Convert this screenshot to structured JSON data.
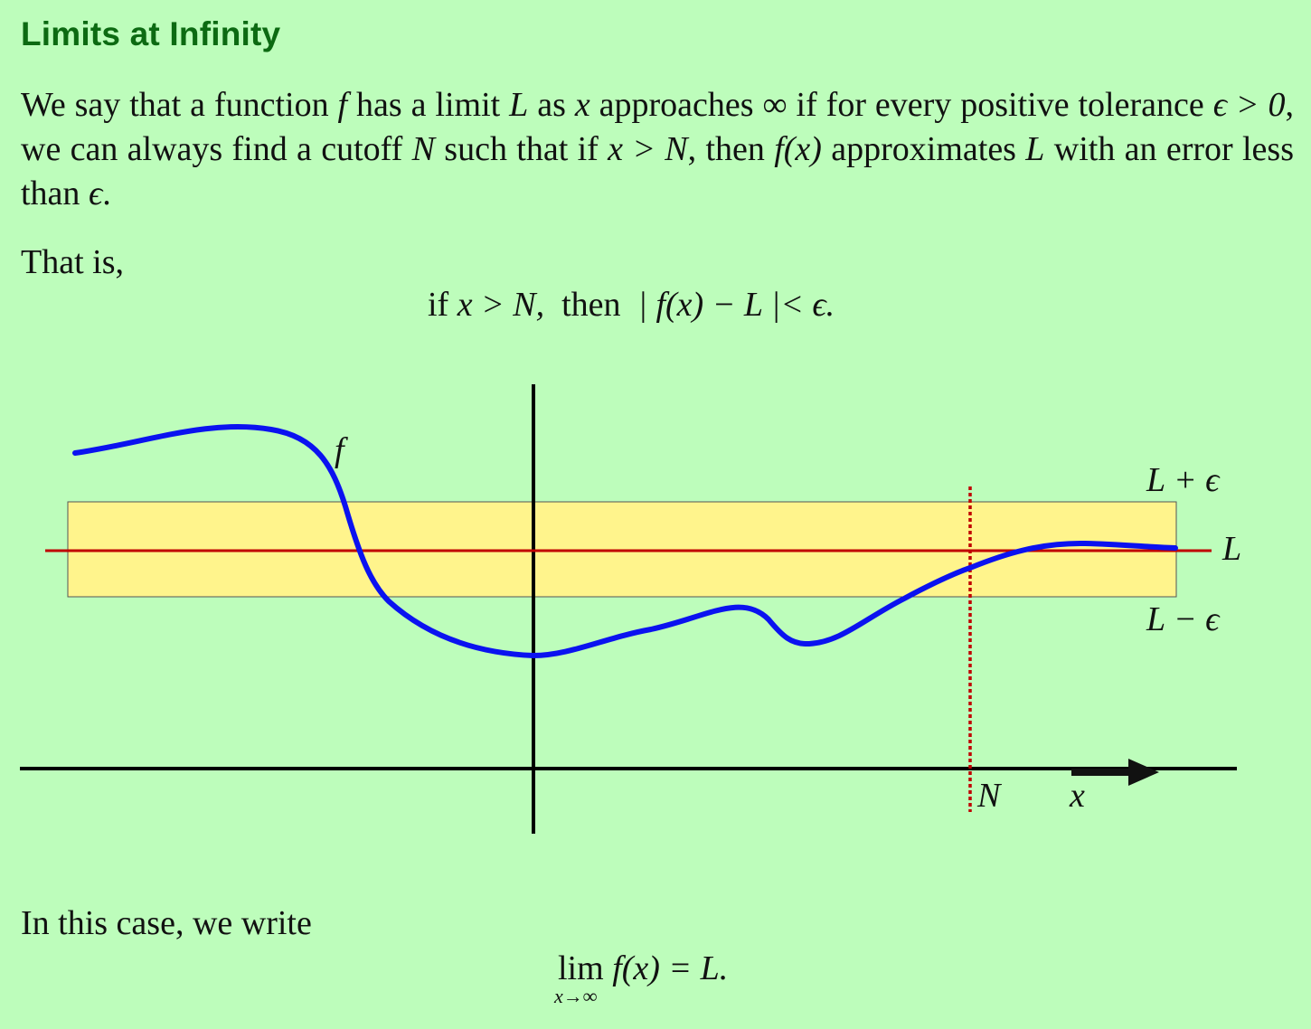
{
  "header": {
    "title": "Limits at Infinity"
  },
  "intro": {
    "t1": "We say that a function ",
    "f": "f",
    "t2": " has a limit ",
    "L": "L",
    "t3": " as ",
    "x": "x",
    "t4": " approaches ∞ if for every positive tolerance ",
    "eps_gt": "ϵ > 0",
    "t5": ", we can always find a cutoff ",
    "N": "N",
    "t6": " such that if ",
    "x_gt_N": "x > N",
    "t7": ", then ",
    "fx": "f(x)",
    "t8": " approximates ",
    "L2": "L",
    "t9": " with an error less than ",
    "eps": "ϵ",
    "t10": "."
  },
  "that_is": "That is,",
  "condition": {
    "if": "if ",
    "x_gt_N": "x > N,",
    "then": "  then  ",
    "expr": "| f(x) − L |< ϵ."
  },
  "plot": {
    "labels": {
      "f": "f",
      "upper": "L + ϵ",
      "mid": "L",
      "lower": "L − ϵ",
      "cutoff": "N",
      "xaxis": "x"
    },
    "colors": {
      "background": "#bdfdbb",
      "band": "#fff48c",
      "curve": "#0b12f0",
      "limit_line": "#c00000",
      "axes": "#000000"
    }
  },
  "conclusion": "In this case, we write",
  "limit_eq": {
    "lim": "lim",
    "sub": "x→∞",
    "rhs": " f(x) = L."
  }
}
